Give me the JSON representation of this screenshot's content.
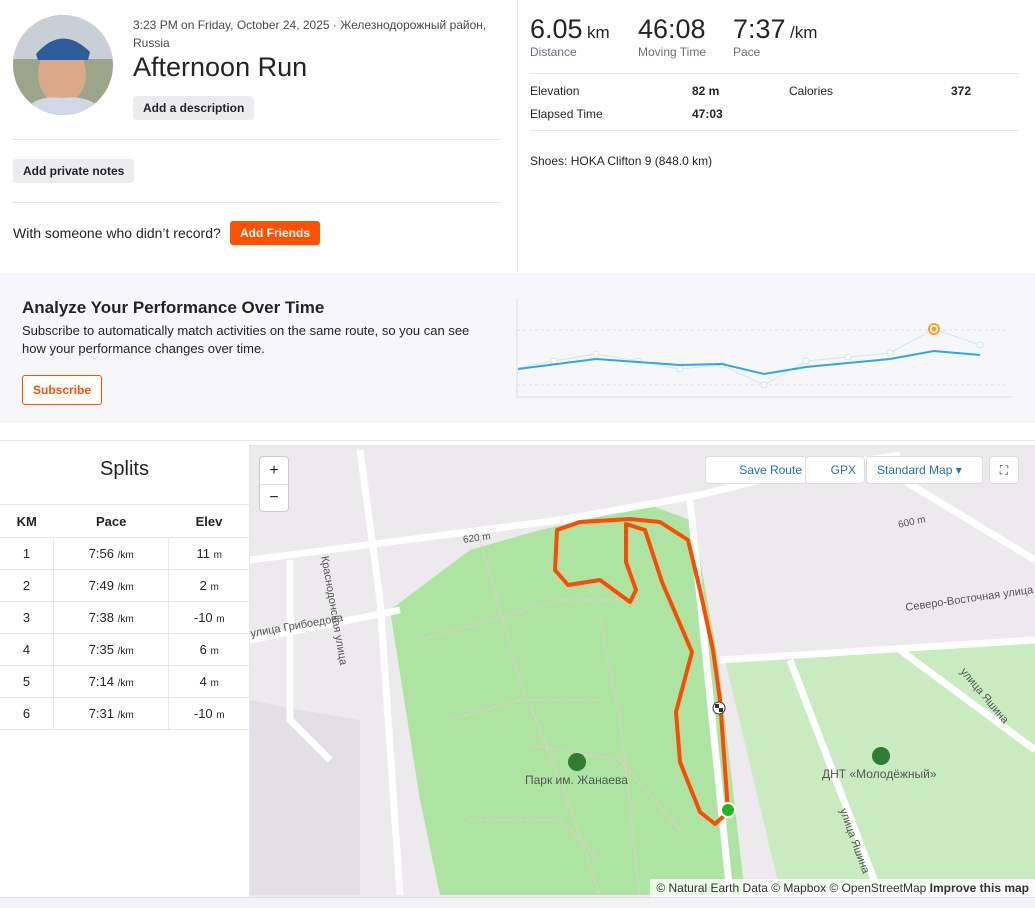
{
  "header": {
    "datetime": "3:23 PM on Friday, October 24, 2025 · Железнодорожный район,",
    "location": "Russia",
    "title": "Afternoon Run",
    "add_description": "Add a description",
    "add_private_notes": "Add private notes",
    "with_someone": "With someone who didn’t record?",
    "add_friends": "Add Friends"
  },
  "stats": [
    {
      "value": "6.05",
      "unit": "km",
      "label": "Distance"
    },
    {
      "value": "46:08",
      "label": "Moving Time"
    },
    {
      "value": "7:37",
      "unit": "/km",
      "label": "Pace"
    }
  ],
  "more_stats": [
    {
      "label": "Elevation",
      "value": "82 m"
    },
    {
      "label": "Calories",
      "value": "372"
    },
    {
      "label": "Elapsed Time",
      "value": "47:03"
    }
  ],
  "shoes": "Shoes: HOKA Clifton 9 (848.0 km)",
  "analyze": {
    "title": "Analyze Your Performance Over Time",
    "text": "Subscribe to automatically match activities on the same route, so you can see how your performance changes over time.",
    "button": "Subscribe"
  },
  "splits": {
    "title": "Splits",
    "columns": [
      "KM",
      "Pace",
      "Elev"
    ],
    "pace_unit": "/km",
    "elev_unit": "m",
    "rows": [
      {
        "km": 1,
        "pace": "7:56",
        "elev": 11
      },
      {
        "km": 2,
        "pace": "7:49",
        "elev": 2
      },
      {
        "km": 3,
        "pace": "7:38",
        "elev": -10
      },
      {
        "km": 4,
        "pace": "7:35",
        "elev": 6
      },
      {
        "km": 5,
        "pace": "7:14",
        "elev": 4
      },
      {
        "km": 6,
        "pace": "7:31",
        "elev": -10
      }
    ]
  },
  "map": {
    "zoom_in": "+",
    "zoom_out": "−",
    "save_route": "Save Route",
    "gpx": "GPX",
    "style": "Standard Map",
    "labels": [
      "Краснодонская улица",
      "улица Грибоедова",
      "Северо-Восточная улица",
      "улица Яшина",
      "улица Яшина",
      "Парк им. Жанаева",
      "ДНТ «Молодёжный»",
      "600 m",
      "620 m"
    ],
    "attribution": "© Natural Earth Data © Mapbox © OpenStreetMap",
    "improve": "Improve this map"
  }
}
